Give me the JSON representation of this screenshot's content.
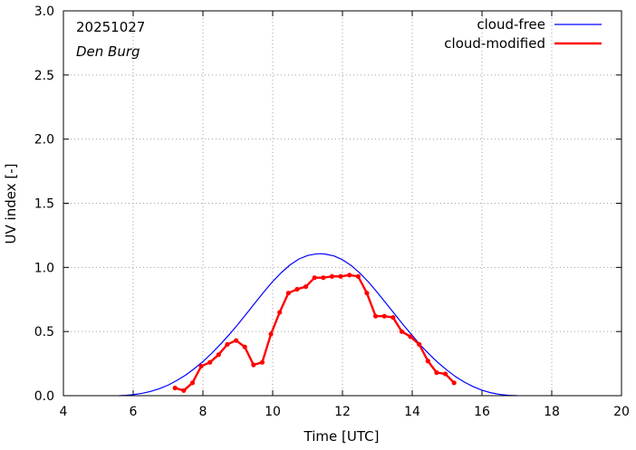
{
  "chart_data": {
    "type": "line",
    "date": "20251027",
    "location": "Den Burg",
    "xlabel": "Time  [UTC]",
    "ylabel": "UV index  [-]",
    "xlim": [
      4,
      20
    ],
    "ylim": [
      0.0,
      3.0
    ],
    "xticks": [
      "4",
      "6",
      "8",
      "10",
      "12",
      "14",
      "16",
      "18",
      "20"
    ],
    "yticks": [
      "0.0",
      "0.5",
      "1.0",
      "1.5",
      "2.0",
      "2.5",
      "3.0"
    ],
    "grid": true,
    "legend_position": "top-right",
    "series": [
      {
        "name": "cloud-free",
        "color": "#0000ff",
        "style": "line",
        "x": [
          5.6,
          5.8,
          6.0,
          6.25,
          6.5,
          6.75,
          7.0,
          7.25,
          7.5,
          7.75,
          8.0,
          8.25,
          8.5,
          8.75,
          9.0,
          9.25,
          9.5,
          9.75,
          10.0,
          10.25,
          10.5,
          10.75,
          11.0,
          11.25,
          11.4,
          11.5,
          11.75,
          12.0,
          12.25,
          12.5,
          12.75,
          13.0,
          13.25,
          13.5,
          13.75,
          14.0,
          14.25,
          14.5,
          14.75,
          15.0,
          15.25,
          15.5,
          15.75,
          16.0,
          16.25,
          16.5,
          16.75,
          17.0
        ],
        "y": [
          0.0,
          0.003,
          0.008,
          0.018,
          0.033,
          0.054,
          0.082,
          0.118,
          0.16,
          0.21,
          0.266,
          0.33,
          0.4,
          0.475,
          0.555,
          0.64,
          0.725,
          0.81,
          0.89,
          0.96,
          1.02,
          1.065,
          1.093,
          1.105,
          1.107,
          1.104,
          1.09,
          1.06,
          1.015,
          0.955,
          0.885,
          0.805,
          0.72,
          0.635,
          0.55,
          0.47,
          0.39,
          0.32,
          0.255,
          0.198,
          0.147,
          0.105,
          0.07,
          0.043,
          0.023,
          0.01,
          0.003,
          0.0
        ]
      },
      {
        "name": "cloud-modified",
        "color": "#ff0000",
        "style": "line+points",
        "x": [
          7.2,
          7.45,
          7.7,
          7.95,
          8.2,
          8.45,
          8.7,
          8.95,
          9.2,
          9.45,
          9.7,
          9.95,
          10.2,
          10.45,
          10.7,
          10.95,
          11.2,
          11.45,
          11.7,
          11.95,
          12.2,
          12.45,
          12.7,
          12.95,
          13.2,
          13.45,
          13.7,
          13.95,
          14.2,
          14.45,
          14.7,
          14.95,
          15.2
        ],
        "y": [
          0.06,
          0.04,
          0.1,
          0.23,
          0.26,
          0.32,
          0.4,
          0.43,
          0.38,
          0.24,
          0.26,
          0.48,
          0.65,
          0.8,
          0.83,
          0.85,
          0.92,
          0.92,
          0.93,
          0.93,
          0.94,
          0.93,
          0.8,
          0.62,
          0.62,
          0.61,
          0.5,
          0.46,
          0.4,
          0.27,
          0.18,
          0.17,
          0.1
        ]
      }
    ]
  }
}
